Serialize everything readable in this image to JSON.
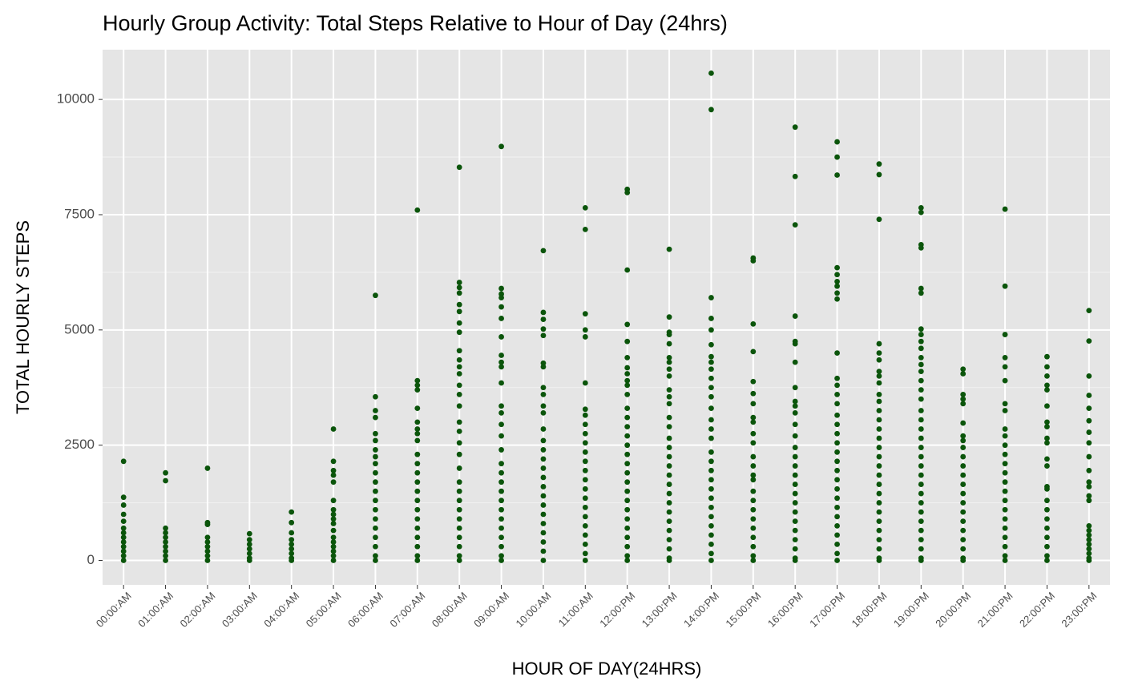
{
  "chart_data": {
    "type": "scatter",
    "title": "Hourly Group Activity: Total Steps Relative to Hour of Day (24hrs)",
    "x_label": "HOUR OF DAY(24HRS)",
    "y_label": "TOTAL HOURLY STEPS",
    "color": "#0b550b",
    "grid": true,
    "ylim": [
      -530,
      11080
    ],
    "yticks": [
      0,
      2500,
      5000,
      7500,
      10000
    ],
    "minor_gridlines": [
      1250,
      3750,
      6250,
      8750
    ],
    "categories": [
      "00:00:AM",
      "01:00:AM",
      "02:00:AM",
      "03:00:AM",
      "04:00:AM",
      "05:00:AM",
      "06:00:AM",
      "07:00:AM",
      "08:00:AM",
      "09:00:AM",
      "10:00:AM",
      "11:00:AM",
      "12:00:PM",
      "13:00:PM",
      "14:00:PM",
      "15:00:PM",
      "16:00:PM",
      "17:00:PM",
      "18:00:PM",
      "19:00:PM",
      "20:00:PM",
      "21:00:PM",
      "22:00:PM",
      "23:00:PM"
    ],
    "values": [
      [
        2150,
        1370,
        1200,
        1000,
        850,
        700,
        600,
        500,
        400,
        300,
        200,
        100,
        0
      ],
      [
        1900,
        1730,
        700,
        600,
        500,
        400,
        300,
        200,
        100,
        0
      ],
      [
        2000,
        820,
        780,
        500,
        400,
        300,
        200,
        100,
        0
      ],
      [
        580,
        450,
        350,
        250,
        150,
        50,
        0
      ],
      [
        1050,
        820,
        600,
        450,
        350,
        250,
        150,
        50,
        0
      ],
      [
        2850,
        2150,
        1950,
        1850,
        1700,
        1300,
        1100,
        1000,
        900,
        800,
        650,
        500,
        400,
        300,
        200,
        100,
        0
      ],
      [
        5750,
        3550,
        3250,
        3100,
        2750,
        2600,
        2400,
        2250,
        2100,
        1900,
        1700,
        1500,
        1300,
        1100,
        900,
        700,
        500,
        300,
        100,
        0
      ],
      [
        7600,
        3900,
        3800,
        3700,
        3300,
        3000,
        2850,
        2750,
        2600,
        2300,
        2100,
        1900,
        1700,
        1500,
        1300,
        1100,
        900,
        700,
        500,
        300,
        100,
        0
      ],
      [
        8530,
        6030,
        5920,
        5800,
        5550,
        5400,
        5150,
        4950,
        4550,
        4350,
        4200,
        4050,
        3800,
        3600,
        3350,
        3000,
        2800,
        2550,
        2300,
        2000,
        1700,
        1500,
        1300,
        1100,
        900,
        700,
        500,
        300,
        100,
        0
      ],
      [
        8980,
        5900,
        5780,
        5700,
        5500,
        5250,
        4850,
        4450,
        4300,
        4200,
        3850,
        3350,
        3200,
        2950,
        2700,
        2400,
        2100,
        1900,
        1700,
        1500,
        1300,
        1100,
        900,
        700,
        500,
        300,
        100,
        0
      ],
      [
        6720,
        5380,
        5230,
        5020,
        4880,
        4280,
        4200,
        3750,
        3600,
        3350,
        3200,
        2850,
        2600,
        2400,
        2200,
        2000,
        1800,
        1600,
        1400,
        1200,
        1000,
        800,
        600,
        400,
        200,
        0
      ],
      [
        7650,
        7180,
        5350,
        5000,
        4850,
        3850,
        3280,
        3150,
        2950,
        2750,
        2550,
        2350,
        2150,
        1950,
        1750,
        1550,
        1350,
        1150,
        950,
        750,
        550,
        350,
        150,
        0
      ],
      [
        8050,
        7980,
        6300,
        5120,
        4750,
        4400,
        4180,
        4050,
        3900,
        3800,
        3600,
        3300,
        3100,
        2900,
        2700,
        2500,
        2300,
        2100,
        1900,
        1700,
        1500,
        1300,
        1100,
        900,
        700,
        500,
        300,
        100,
        0
      ],
      [
        6750,
        5280,
        4950,
        4900,
        4700,
        4400,
        4300,
        4150,
        4000,
        3700,
        3550,
        3400,
        3100,
        2900,
        2650,
        2450,
        2250,
        2050,
        1850,
        1650,
        1450,
        1250,
        1050,
        850,
        650,
        450,
        250,
        50,
        0
      ],
      [
        10570,
        9780,
        5700,
        5250,
        5000,
        4680,
        4420,
        4300,
        4150,
        3950,
        3750,
        3550,
        3300,
        3050,
        2850,
        2650,
        2350,
        2150,
        1950,
        1750,
        1550,
        1350,
        1150,
        950,
        750,
        550,
        350,
        150,
        0
      ],
      [
        6560,
        6500,
        5130,
        4530,
        3880,
        3620,
        3400,
        3100,
        3000,
        2750,
        2550,
        2250,
        2050,
        1850,
        1750,
        1500,
        1300,
        1100,
        900,
        700,
        500,
        300,
        100,
        0
      ],
      [
        9400,
        8330,
        7280,
        5300,
        4750,
        4700,
        4300,
        3750,
        3450,
        3350,
        3200,
        2950,
        2700,
        2450,
        2250,
        2050,
        1850,
        1650,
        1450,
        1250,
        1050,
        850,
        650,
        450,
        250,
        50,
        0
      ],
      [
        9080,
        8750,
        8360,
        6350,
        6200,
        6050,
        5950,
        5800,
        5670,
        4500,
        3950,
        3800,
        3600,
        3400,
        3150,
        2950,
        2750,
        2550,
        2350,
        2150,
        1950,
        1750,
        1550,
        1350,
        1150,
        950,
        750,
        550,
        350,
        150,
        0
      ],
      [
        8600,
        8370,
        7400,
        4700,
        4500,
        4350,
        4100,
        4000,
        3850,
        3600,
        3450,
        3250,
        3050,
        2850,
        2650,
        2450,
        2250,
        2050,
        1850,
        1650,
        1450,
        1250,
        1050,
        850,
        650,
        450,
        250,
        50,
        0
      ],
      [
        7650,
        7550,
        6850,
        6780,
        5900,
        5800,
        5020,
        4900,
        4750,
        4600,
        4400,
        4250,
        4100,
        3900,
        3700,
        3500,
        3250,
        3050,
        2850,
        2650,
        2450,
        2250,
        2050,
        1850,
        1650,
        1450,
        1250,
        1050,
        850,
        650,
        450,
        250,
        50,
        0
      ],
      [
        4150,
        4050,
        3600,
        3500,
        3400,
        2980,
        2700,
        2600,
        2450,
        2250,
        2050,
        1850,
        1650,
        1450,
        1250,
        1050,
        850,
        650,
        450,
        250,
        50,
        0
      ],
      [
        7620,
        5950,
        4900,
        4400,
        4200,
        3900,
        3400,
        3250,
        2850,
        2700,
        2500,
        2300,
        2100,
        1900,
        1700,
        1500,
        1300,
        1100,
        900,
        700,
        500,
        300,
        100,
        0
      ],
      [
        4420,
        4200,
        4000,
        3800,
        3700,
        3350,
        3000,
        2900,
        2650,
        2550,
        2200,
        2050,
        1600,
        1550,
        1300,
        1100,
        900,
        700,
        500,
        300,
        100,
        0
      ],
      [
        5420,
        4760,
        4000,
        3580,
        3300,
        3030,
        2780,
        2550,
        2250,
        1950,
        1700,
        1600,
        1400,
        1300,
        750,
        650,
        550,
        450,
        350,
        250,
        150,
        50,
        0
      ]
    ]
  }
}
